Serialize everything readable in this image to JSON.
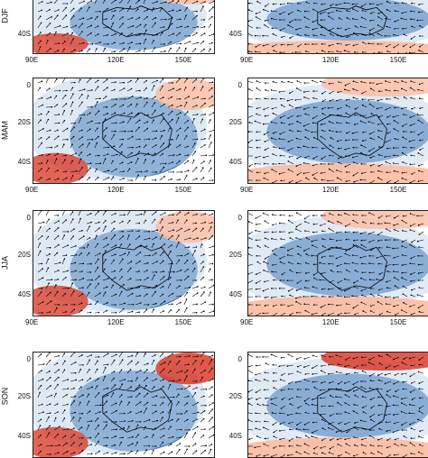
{
  "figure": {
    "columns": 2,
    "x_tick_labels": [
      "90E",
      "120E",
      "150E"
    ],
    "y_tick_labels": [
      "0",
      "20S",
      "40S"
    ],
    "rows": [
      {
        "season": "DJF",
        "season_label_visible_text": "DJF"
      },
      {
        "season": "MAM",
        "season_label_visible_text": "MAM"
      },
      {
        "season": "JJA",
        "season_label_visible_text": "JJA"
      },
      {
        "season": "SON",
        "season_label_visible_text": "SON"
      }
    ],
    "colors": {
      "warm_strong": "#d7301f",
      "warm_light": "#fcbba1",
      "neutral": "#ffffff",
      "cool_light": "#c6dbef",
      "cool_strong": "#1f5fa8",
      "vector": "#000000",
      "coastline": "#000000"
    },
    "vector_field": "arrows overlaid on shaded anomaly map"
  }
}
